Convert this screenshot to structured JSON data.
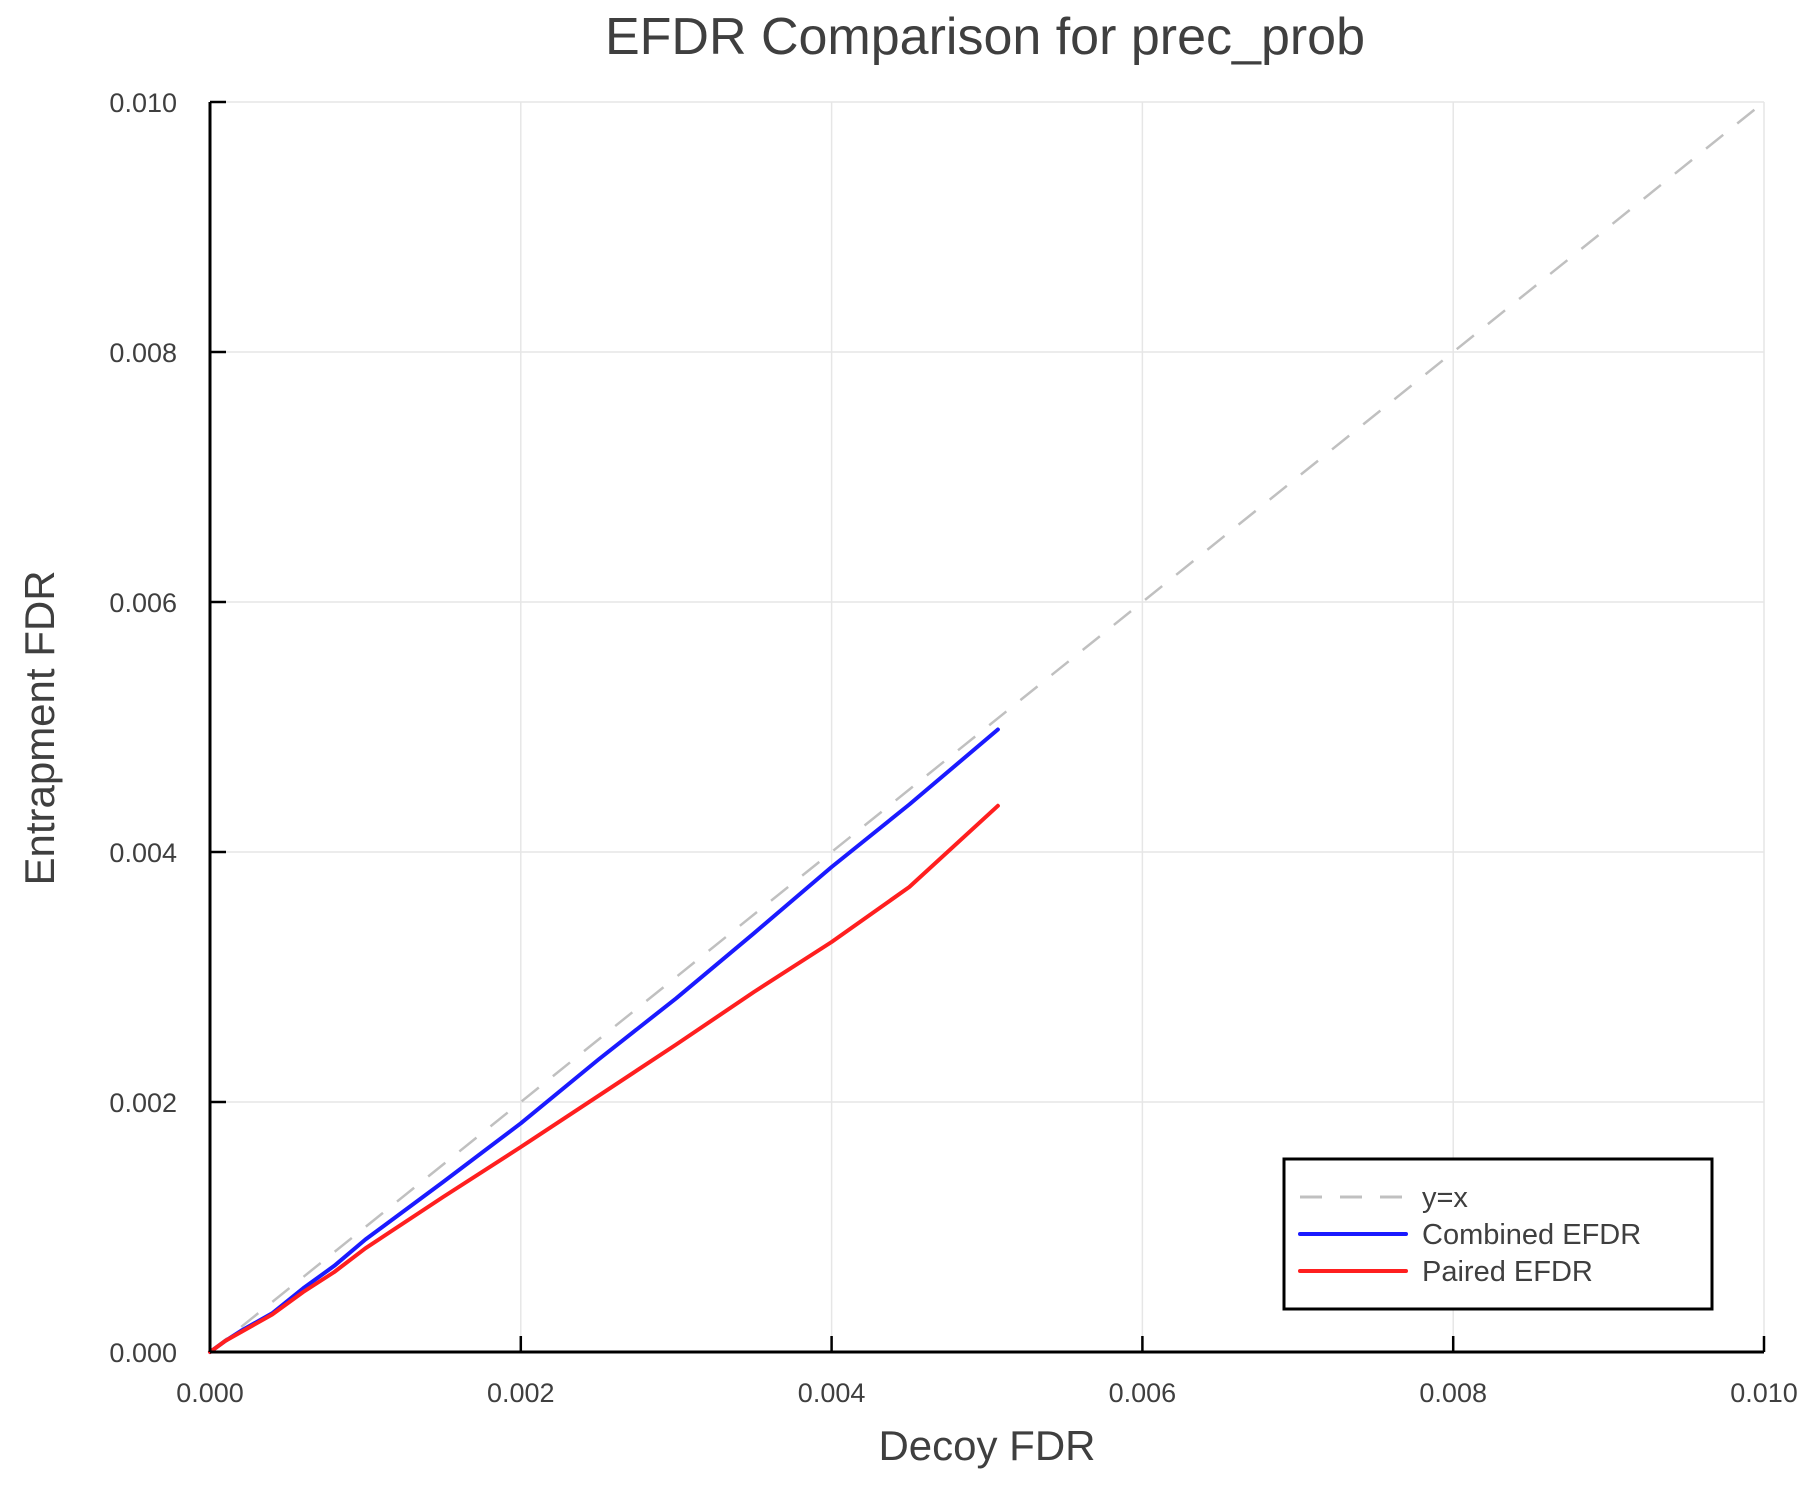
{
  "chart_data": {
    "type": "line",
    "title": "EFDR Comparison for prec_prob",
    "xlabel": "Decoy FDR",
    "ylabel": "Entrapment FDR",
    "xlim": [
      0.0,
      0.01
    ],
    "ylim": [
      0.0,
      0.01
    ],
    "grid": true,
    "legend_position": "lower right",
    "xticks": [
      "0.000",
      "0.002",
      "0.004",
      "0.006",
      "0.008",
      "0.010"
    ],
    "yticks": [
      "0.000",
      "0.002",
      "0.004",
      "0.006",
      "0.008",
      "0.010"
    ],
    "series": [
      {
        "name": "y=x",
        "color": "#c0c0c0",
        "style": "dashed",
        "x": [
          0.0,
          0.01
        ],
        "y": [
          0.0,
          0.01
        ]
      },
      {
        "name": "Combined EFDR",
        "color": "#1a1aff",
        "style": "solid",
        "x": [
          0.0,
          0.0001,
          0.0002,
          0.0004,
          0.0006,
          0.0008,
          0.001,
          0.0015,
          0.002,
          0.0025,
          0.003,
          0.0035,
          0.004,
          0.0045,
          0.00507
        ],
        "y": [
          0.0,
          9e-05,
          0.00017,
          0.00031,
          0.00051,
          0.00069,
          0.0009,
          0.00136,
          0.00183,
          0.00234,
          0.00283,
          0.00335,
          0.00388,
          0.00438,
          0.00498
        ]
      },
      {
        "name": "Paired EFDR",
        "color": "#ff1f1f",
        "style": "solid",
        "x": [
          0.0,
          0.0001,
          0.0002,
          0.0004,
          0.0006,
          0.0008,
          0.001,
          0.0015,
          0.002,
          0.0025,
          0.003,
          0.0035,
          0.004,
          0.0045,
          0.00507
        ],
        "y": [
          0.0,
          9e-05,
          0.00016,
          0.0003,
          0.00048,
          0.00064,
          0.00083,
          0.00124,
          0.00164,
          0.00205,
          0.00246,
          0.00288,
          0.00328,
          0.00372,
          0.00437
        ]
      }
    ]
  },
  "legend": {
    "items": [
      {
        "label": "y=x"
      },
      {
        "label": "Combined EFDR"
      },
      {
        "label": "Paired EFDR"
      }
    ]
  }
}
